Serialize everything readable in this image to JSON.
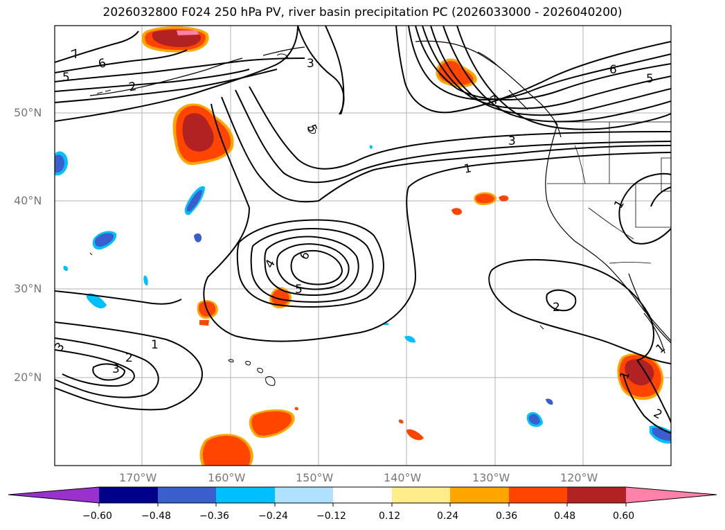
{
  "title": "2026032800 F024 250 hPa PV, river basin precipitation PC (2026033000 - 2026040200)",
  "lat_labels": [
    "50°N",
    "40°N",
    "30°N",
    "20°N"
  ],
  "lon_labels": [
    "170°W",
    "160°W",
    "150°W",
    "140°W",
    "130°W",
    "120°W"
  ],
  "colorbar": {
    "tick_labels": [
      "−0.60",
      "−0.48",
      "−0.36",
      "−0.24",
      "−0.12",
      "0.12",
      "0.24",
      "0.36",
      "0.48",
      "0.60"
    ],
    "colors": [
      "#9932cc",
      "#00008b",
      "#3a5fcd",
      "#00bfff",
      "#b0e2ff",
      "#ffffff",
      "#ffec8b",
      "#ffa500",
      "#ff4500",
      "#b22222",
      "#ff82ab"
    ]
  },
  "contour_labels": {
    "c7_nw": "7",
    "c6_nw": "6",
    "c5_nw": "5",
    "c2_nw": "2",
    "c3_top": "3",
    "c5_mid": "5",
    "c6_ne": "6",
    "c5_ne": "5",
    "c7_ne": "7",
    "c3_ne": "3",
    "c1_ne": "1",
    "c4_low": "4",
    "c6_low": "6",
    "c5_low": "5",
    "c1_sw": "1",
    "c2_sw": "2",
    "c3_sw": "3",
    "c3_edge": "3",
    "c2_se": "2",
    "c1_east": "1",
    "c1_se": "1",
    "c2_se2": "2",
    "c1_mex": "1"
  }
}
